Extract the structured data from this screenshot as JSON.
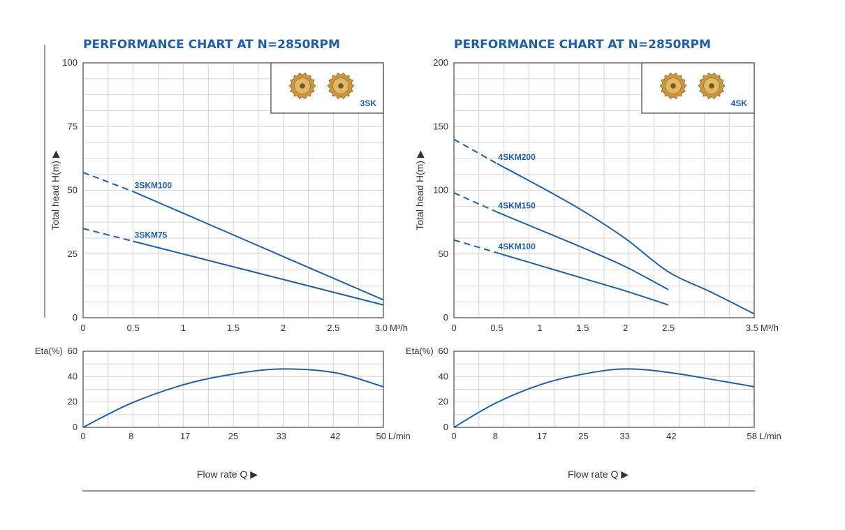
{
  "chart_data": [
    {
      "type": "line",
      "title": "PERFORMANCE CHART AT N=2850RPM",
      "ylabel": "Total head H(m) ▶",
      "x_unit": "M³/h",
      "xlim": [
        0,
        3.0
      ],
      "ylim": [
        0,
        100
      ],
      "x_ticks": [
        "0",
        "0.5",
        "1",
        "1.5",
        "2",
        "2.5",
        "3.0"
      ],
      "y_ticks": [
        "0",
        "25",
        "50",
        "75",
        "100"
      ],
      "inset_label": "3SK",
      "series": [
        {
          "name": "3SKM100",
          "dashed_x": [
            0,
            0.5
          ],
          "dashed_y": [
            57,
            49.5
          ],
          "x": [
            0.5,
            1.0,
            1.5,
            2.0,
            2.5,
            3.0
          ],
          "y": [
            49.5,
            41,
            32.5,
            24,
            15.5,
            7
          ]
        },
        {
          "name": "3SKM75",
          "dashed_x": [
            0,
            0.5
          ],
          "dashed_y": [
            35,
            30
          ],
          "x": [
            0.5,
            1.0,
            1.5,
            2.0,
            2.5,
            3.0
          ],
          "y": [
            30,
            25,
            20,
            15,
            10,
            5
          ]
        }
      ],
      "efficiency": {
        "ylabel": "Eta(%)",
        "x_unit": "L/min",
        "x_ticks": [
          "0",
          "8",
          "17",
          "25",
          "33",
          "42",
          "50"
        ],
        "y_ticks": [
          "0",
          "20",
          "40",
          "60"
        ],
        "xlim": [
          0,
          50
        ],
        "ylim": [
          0,
          60
        ],
        "x": [
          0,
          8,
          17,
          25,
          33,
          42,
          50
        ],
        "y": [
          0,
          19,
          34,
          42,
          46,
          43,
          32
        ]
      },
      "xlabel": "Flow rate Q ▶"
    },
    {
      "type": "line",
      "title": "PERFORMANCE CHART AT N=2850RPM",
      "ylabel": "Total head H(m) ▶",
      "x_unit": "M³/h",
      "xlim": [
        0,
        3.5
      ],
      "ylim": [
        0,
        200
      ],
      "x_ticks": [
        "0",
        "0.5",
        "1",
        "1.5",
        "2",
        "2.5",
        "3.5"
      ],
      "x_tick_values": [
        0,
        0.5,
        1,
        1.5,
        2,
        2.5,
        3.5
      ],
      "y_ticks": [
        "0",
        "50",
        "100",
        "150",
        "200"
      ],
      "inset_label": "4SK",
      "series": [
        {
          "name": "4SKM200",
          "dashed_x": [
            0,
            0.5
          ],
          "dashed_y": [
            140,
            121
          ],
          "x": [
            0.5,
            1.0,
            1.5,
            2.0,
            2.5,
            3.0,
            3.5
          ],
          "y": [
            121,
            103,
            84,
            62,
            36,
            20,
            3
          ]
        },
        {
          "name": "4SKM150",
          "dashed_x": [
            0,
            0.5
          ],
          "dashed_y": [
            98,
            83
          ],
          "x": [
            0.5,
            1.0,
            1.5,
            2.0,
            2.5
          ],
          "y": [
            83,
            69,
            55,
            40,
            22
          ]
        },
        {
          "name": "4SKM100",
          "dashed_x": [
            0,
            0.5
          ],
          "dashed_y": [
            61,
            51
          ],
          "x": [
            0.5,
            1.0,
            1.5,
            2.0,
            2.5
          ],
          "y": [
            51,
            41,
            31,
            21,
            10
          ]
        }
      ],
      "efficiency": {
        "ylabel": "Eta(%)",
        "x_unit": "L/min",
        "x_ticks": [
          "0",
          "8",
          "17",
          "25",
          "33",
          "42",
          "58"
        ],
        "y_ticks": [
          "0",
          "20",
          "40",
          "60"
        ],
        "xlim": [
          0,
          58
        ],
        "ylim": [
          0,
          60
        ],
        "x": [
          0,
          8,
          17,
          25,
          33,
          42,
          58
        ],
        "y": [
          0,
          19,
          34,
          42,
          46,
          43,
          32
        ]
      },
      "xlabel": "Flow rate Q ▶"
    }
  ],
  "colors": {
    "curve": "#1f5fa8",
    "title": "#1f5fa8",
    "impeller": "#c9973f"
  },
  "icons": [
    "impeller-icon"
  ]
}
